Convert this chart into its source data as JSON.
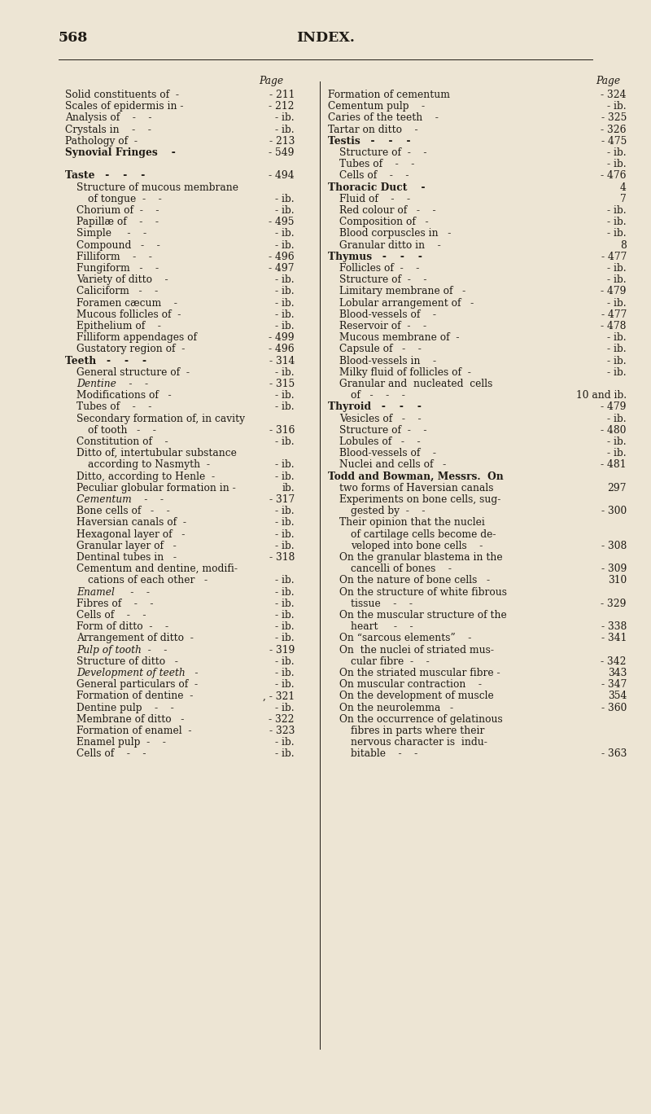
{
  "page_number": "568",
  "page_title": "INDEX.",
  "background_color": "#ede5d4",
  "text_color": "#1e1a14",
  "font_size": 8.8,
  "title_font_size": 12.5,
  "page_num_font_size": 12.5,
  "left_col": [
    {
      "text": "Solid constituents of  -",
      "page": "- 211",
      "indent": 0,
      "style": "normal"
    },
    {
      "text": "Scales of epidermis in -",
      "page": "- 212",
      "indent": 0,
      "style": "normal"
    },
    {
      "text": "Analysis of    -    -",
      "page": "- ib.",
      "indent": 0,
      "style": "normal"
    },
    {
      "text": "Crystals in    -    -",
      "page": "- ib.",
      "indent": 0,
      "style": "normal"
    },
    {
      "text": "Pathology of  -",
      "page": "- 213",
      "indent": 0,
      "style": "normal"
    },
    {
      "text": "Synovial Fringes    -",
      "page": "- 549",
      "indent": 0,
      "style": "sc"
    },
    {
      "text": "",
      "page": "",
      "indent": 0,
      "style": "blank"
    },
    {
      "text": "Taste   -    -    -",
      "page": "- 494",
      "indent": 0,
      "style": "sc"
    },
    {
      "text": "Structure of mucous membrane",
      "page": "",
      "indent": 1,
      "style": "normal"
    },
    {
      "text": "of tongue  -    -",
      "page": "- ib.",
      "indent": 2,
      "style": "normal"
    },
    {
      "text": "Chorium of  -    -",
      "page": "- ib.",
      "indent": 1,
      "style": "normal"
    },
    {
      "text": "Papillæ of    -    -",
      "page": "- 495",
      "indent": 1,
      "style": "normal"
    },
    {
      "text": "Simple     -    -",
      "page": "- ib.",
      "indent": 1,
      "style": "normal"
    },
    {
      "text": "Compound   -    -",
      "page": "- ib.",
      "indent": 1,
      "style": "normal"
    },
    {
      "text": "Filliform    -    -",
      "page": "- 496",
      "indent": 1,
      "style": "normal"
    },
    {
      "text": "Fungiform   -    -",
      "page": "- 497",
      "indent": 1,
      "style": "normal"
    },
    {
      "text": "Variety of ditto    -",
      "page": "- ib.",
      "indent": 1,
      "style": "normal"
    },
    {
      "text": "Caliciform   -    -",
      "page": "- ib.",
      "indent": 1,
      "style": "normal"
    },
    {
      "text": "Foramen cæcum    -",
      "page": "- ib.",
      "indent": 1,
      "style": "normal"
    },
    {
      "text": "Mucous follicles of  -",
      "page": "- ib.",
      "indent": 1,
      "style": "normal"
    },
    {
      "text": "Epithelium of    -",
      "page": "- ib.",
      "indent": 1,
      "style": "normal"
    },
    {
      "text": "Filliform appendages of",
      "page": "- 499",
      "indent": 1,
      "style": "normal"
    },
    {
      "text": "Gustatory region of  -",
      "page": "- 496",
      "indent": 1,
      "style": "normal"
    },
    {
      "text": "Teeth   -    -    -",
      "page": "- 314",
      "indent": 0,
      "style": "sc"
    },
    {
      "text": "General structure of  -",
      "page": "- ib.",
      "indent": 1,
      "style": "normal"
    },
    {
      "text": "Dentine    -    -",
      "page": "- 315",
      "indent": 1,
      "style": "italic"
    },
    {
      "text": "Modifications of   -",
      "page": "- ib.",
      "indent": 1,
      "style": "normal"
    },
    {
      "text": "Tubes of    -    -",
      "page": "- ib.",
      "indent": 1,
      "style": "normal"
    },
    {
      "text": "Secondary formation of, in cavity",
      "page": "",
      "indent": 1,
      "style": "normal"
    },
    {
      "text": "of tooth   -    -",
      "page": "- 316",
      "indent": 2,
      "style": "normal"
    },
    {
      "text": "Constitution of    -",
      "page": "- ib.",
      "indent": 1,
      "style": "normal"
    },
    {
      "text": "Ditto of, intertubular substance",
      "page": "",
      "indent": 1,
      "style": "normal"
    },
    {
      "text": "according to Nasmyth  -",
      "page": "- ib.",
      "indent": 2,
      "style": "normal"
    },
    {
      "text": "Ditto, according to Henle  -",
      "page": "- ib.",
      "indent": 1,
      "style": "normal"
    },
    {
      "text": "Peculiar globular formation in -",
      "page": "ib.",
      "indent": 1,
      "style": "normal"
    },
    {
      "text": "Cementum    -    -",
      "page": "- 317",
      "indent": 1,
      "style": "italic"
    },
    {
      "text": "Bone cells of   -    -",
      "page": "- ib.",
      "indent": 1,
      "style": "normal"
    },
    {
      "text": "Haversian canals of  -",
      "page": "- ib.",
      "indent": 1,
      "style": "normal"
    },
    {
      "text": "Hexagonal layer of   -",
      "page": "- ib.",
      "indent": 1,
      "style": "normal"
    },
    {
      "text": "Granular layer of   -",
      "page": "- ib.",
      "indent": 1,
      "style": "normal"
    },
    {
      "text": "Dentinal tubes in   -",
      "page": "- 318",
      "indent": 1,
      "style": "normal"
    },
    {
      "text": "Cementum and dentine, modifi-",
      "page": "",
      "indent": 1,
      "style": "normal"
    },
    {
      "text": "cations of each other   -",
      "page": "- ib.",
      "indent": 2,
      "style": "normal"
    },
    {
      "text": "Enamel     -    -",
      "page": "- ib.",
      "indent": 1,
      "style": "italic"
    },
    {
      "text": "Fibres of    -    -",
      "page": "- ib.",
      "indent": 1,
      "style": "normal"
    },
    {
      "text": "Cells of    -    -",
      "page": "- ib.",
      "indent": 1,
      "style": "normal"
    },
    {
      "text": "Form of ditto  -    -",
      "page": "- ib.",
      "indent": 1,
      "style": "normal"
    },
    {
      "text": "Arrangement of ditto  -",
      "page": "- ib.",
      "indent": 1,
      "style": "normal"
    },
    {
      "text": "Pulp of tooth  -    -",
      "page": "- 319",
      "indent": 1,
      "style": "italic"
    },
    {
      "text": "Structure of ditto   -",
      "page": "- ib.",
      "indent": 1,
      "style": "normal"
    },
    {
      "text": "Development of teeth   -",
      "page": "- ib.",
      "indent": 1,
      "style": "italic"
    },
    {
      "text": "General particulars of  -",
      "page": "- ib.",
      "indent": 1,
      "style": "normal"
    },
    {
      "text": "Formation of dentine  -",
      "page": ", - 321",
      "indent": 1,
      "style": "normal"
    },
    {
      "text": "Dentine pulp    -    -",
      "page": "- ib.",
      "indent": 1,
      "style": "normal"
    },
    {
      "text": "Membrane of ditto   -",
      "page": "- 322",
      "indent": 1,
      "style": "normal"
    },
    {
      "text": "Formation of enamel  -",
      "page": "- 323",
      "indent": 1,
      "style": "normal"
    },
    {
      "text": "Enamel pulp  -    -",
      "page": "- ib.",
      "indent": 1,
      "style": "normal"
    },
    {
      "text": "Cells of    -    -",
      "page": "- ib.",
      "indent": 1,
      "style": "normal"
    }
  ],
  "right_col": [
    {
      "text": "Formation of cementum",
      "page": "- 324",
      "indent": 0,
      "style": "normal"
    },
    {
      "text": "Cementum pulp    -",
      "page": "- ib.",
      "indent": 0,
      "style": "normal"
    },
    {
      "text": "Caries of the teeth    -",
      "page": "- 325",
      "indent": 0,
      "style": "normal"
    },
    {
      "text": "Tartar on ditto    -",
      "page": "- 326",
      "indent": 0,
      "style": "normal"
    },
    {
      "text": "Testis   -    -    -",
      "page": "- 475",
      "indent": 0,
      "style": "sc"
    },
    {
      "text": "Structure of  -    -",
      "page": "- ib.",
      "indent": 1,
      "style": "normal"
    },
    {
      "text": "Tubes of    -    -",
      "page": "- ib.",
      "indent": 1,
      "style": "normal"
    },
    {
      "text": "Cells of    -    -",
      "page": "- 476",
      "indent": 1,
      "style": "normal"
    },
    {
      "text": "Thoracic Duct    -",
      "page": "4",
      "indent": 0,
      "style": "sc"
    },
    {
      "text": "Fluid of    -    -",
      "page": "7",
      "indent": 1,
      "style": "normal"
    },
    {
      "text": "Red colour of   -    -",
      "page": "- ib.",
      "indent": 1,
      "style": "normal"
    },
    {
      "text": "Composition of   -",
      "page": "- ib.",
      "indent": 1,
      "style": "normal"
    },
    {
      "text": "Blood corpuscles in   -",
      "page": "- ib.",
      "indent": 1,
      "style": "normal"
    },
    {
      "text": "Granular ditto in    -",
      "page": "8",
      "indent": 1,
      "style": "normal"
    },
    {
      "text": "Thymus   -    -    -",
      "page": "- 477",
      "indent": 0,
      "style": "sc"
    },
    {
      "text": "Follicles of  -    -",
      "page": "- ib.",
      "indent": 1,
      "style": "normal"
    },
    {
      "text": "Structure of  -    -",
      "page": "- ib.",
      "indent": 1,
      "style": "normal"
    },
    {
      "text": "Limitary membrane of   -",
      "page": "- 479",
      "indent": 1,
      "style": "normal"
    },
    {
      "text": "Lobular arrangement of   -",
      "page": "- ib.",
      "indent": 1,
      "style": "normal"
    },
    {
      "text": "Blood-vessels of    -",
      "page": "- 477",
      "indent": 1,
      "style": "normal"
    },
    {
      "text": "Reservoir of  -    -",
      "page": "- 478",
      "indent": 1,
      "style": "normal"
    },
    {
      "text": "Mucous membrane of  -",
      "page": "- ib.",
      "indent": 1,
      "style": "normal"
    },
    {
      "text": "Capsule of   -    -",
      "page": "- ib.",
      "indent": 1,
      "style": "normal"
    },
    {
      "text": "Blood-vessels in    -",
      "page": "- ib.",
      "indent": 1,
      "style": "normal"
    },
    {
      "text": "Milky fluid of follicles of  -",
      "page": "- ib.",
      "indent": 1,
      "style": "normal"
    },
    {
      "text": "Granular and  nucleated  cells",
      "page": "",
      "indent": 1,
      "style": "normal"
    },
    {
      "text": "of   -    -    -",
      "page": "10 and ib.",
      "indent": 2,
      "style": "normal"
    },
    {
      "text": "Thyroid   -    -    -",
      "page": "- 479",
      "indent": 0,
      "style": "sc"
    },
    {
      "text": "Vesicles of   -    -",
      "page": "- ib.",
      "indent": 1,
      "style": "normal"
    },
    {
      "text": "Structure of  -    -",
      "page": "- 480",
      "indent": 1,
      "style": "normal"
    },
    {
      "text": "Lobules of   -    -",
      "page": "- ib.",
      "indent": 1,
      "style": "normal"
    },
    {
      "text": "Blood-vessels of    -",
      "page": "- ib.",
      "indent": 1,
      "style": "normal"
    },
    {
      "text": "Nuclei and cells of   -",
      "page": "- 481",
      "indent": 1,
      "style": "normal"
    },
    {
      "text": "Todd and Bowman, Messrs.  On",
      "page": "",
      "indent": 0,
      "style": "sc"
    },
    {
      "text": "two forms of Haversian canals",
      "page": "297",
      "indent": 1,
      "style": "normal"
    },
    {
      "text": "Experiments on bone cells, sug-",
      "page": "",
      "indent": 1,
      "style": "normal"
    },
    {
      "text": "gested by  -    -",
      "page": "- 300",
      "indent": 2,
      "style": "normal"
    },
    {
      "text": "Their opinion that the nuclei",
      "page": "",
      "indent": 1,
      "style": "normal"
    },
    {
      "text": "of cartilage cells become de-",
      "page": "",
      "indent": 2,
      "style": "normal"
    },
    {
      "text": "veloped into bone cells    -",
      "page": "- 308",
      "indent": 2,
      "style": "normal"
    },
    {
      "text": "On the granular blastema in the",
      "page": "",
      "indent": 1,
      "style": "normal"
    },
    {
      "text": "cancelli of bones    -",
      "page": "- 309",
      "indent": 2,
      "style": "normal"
    },
    {
      "text": "On the nature of bone cells   -",
      "page": "310",
      "indent": 1,
      "style": "normal"
    },
    {
      "text": "On the structure of white fibrous",
      "page": "",
      "indent": 1,
      "style": "normal"
    },
    {
      "text": "tissue    -    -",
      "page": "- 329",
      "indent": 2,
      "style": "normal"
    },
    {
      "text": "On the muscular structure of the",
      "page": "",
      "indent": 1,
      "style": "normal"
    },
    {
      "text": "heart     -    -",
      "page": "- 338",
      "indent": 2,
      "style": "normal"
    },
    {
      "text": "On “sarcous elements”    -",
      "page": "- 341",
      "indent": 1,
      "style": "normal"
    },
    {
      "text": "On  the nuclei of striated mus-",
      "page": "",
      "indent": 1,
      "style": "normal"
    },
    {
      "text": "cular fibre  -    -",
      "page": "- 342",
      "indent": 2,
      "style": "normal"
    },
    {
      "text": "On the striated muscular fibre -",
      "page": "343",
      "indent": 1,
      "style": "normal"
    },
    {
      "text": "On muscular contraction    -",
      "page": "- 347",
      "indent": 1,
      "style": "normal"
    },
    {
      "text": "On the development of muscle",
      "page": "354",
      "indent": 1,
      "style": "normal"
    },
    {
      "text": "On the neurolemma   -",
      "page": "- 360",
      "indent": 1,
      "style": "normal"
    },
    {
      "text": "On the occurrence of gelatinous",
      "page": "",
      "indent": 1,
      "style": "normal"
    },
    {
      "text": "fibres in parts where their",
      "page": "",
      "indent": 2,
      "style": "normal"
    },
    {
      "text": "nervous character is  indu-",
      "page": "",
      "indent": 2,
      "style": "normal"
    },
    {
      "text": "bitable    -    -",
      "page": "- 363",
      "indent": 2,
      "style": "normal"
    }
  ]
}
